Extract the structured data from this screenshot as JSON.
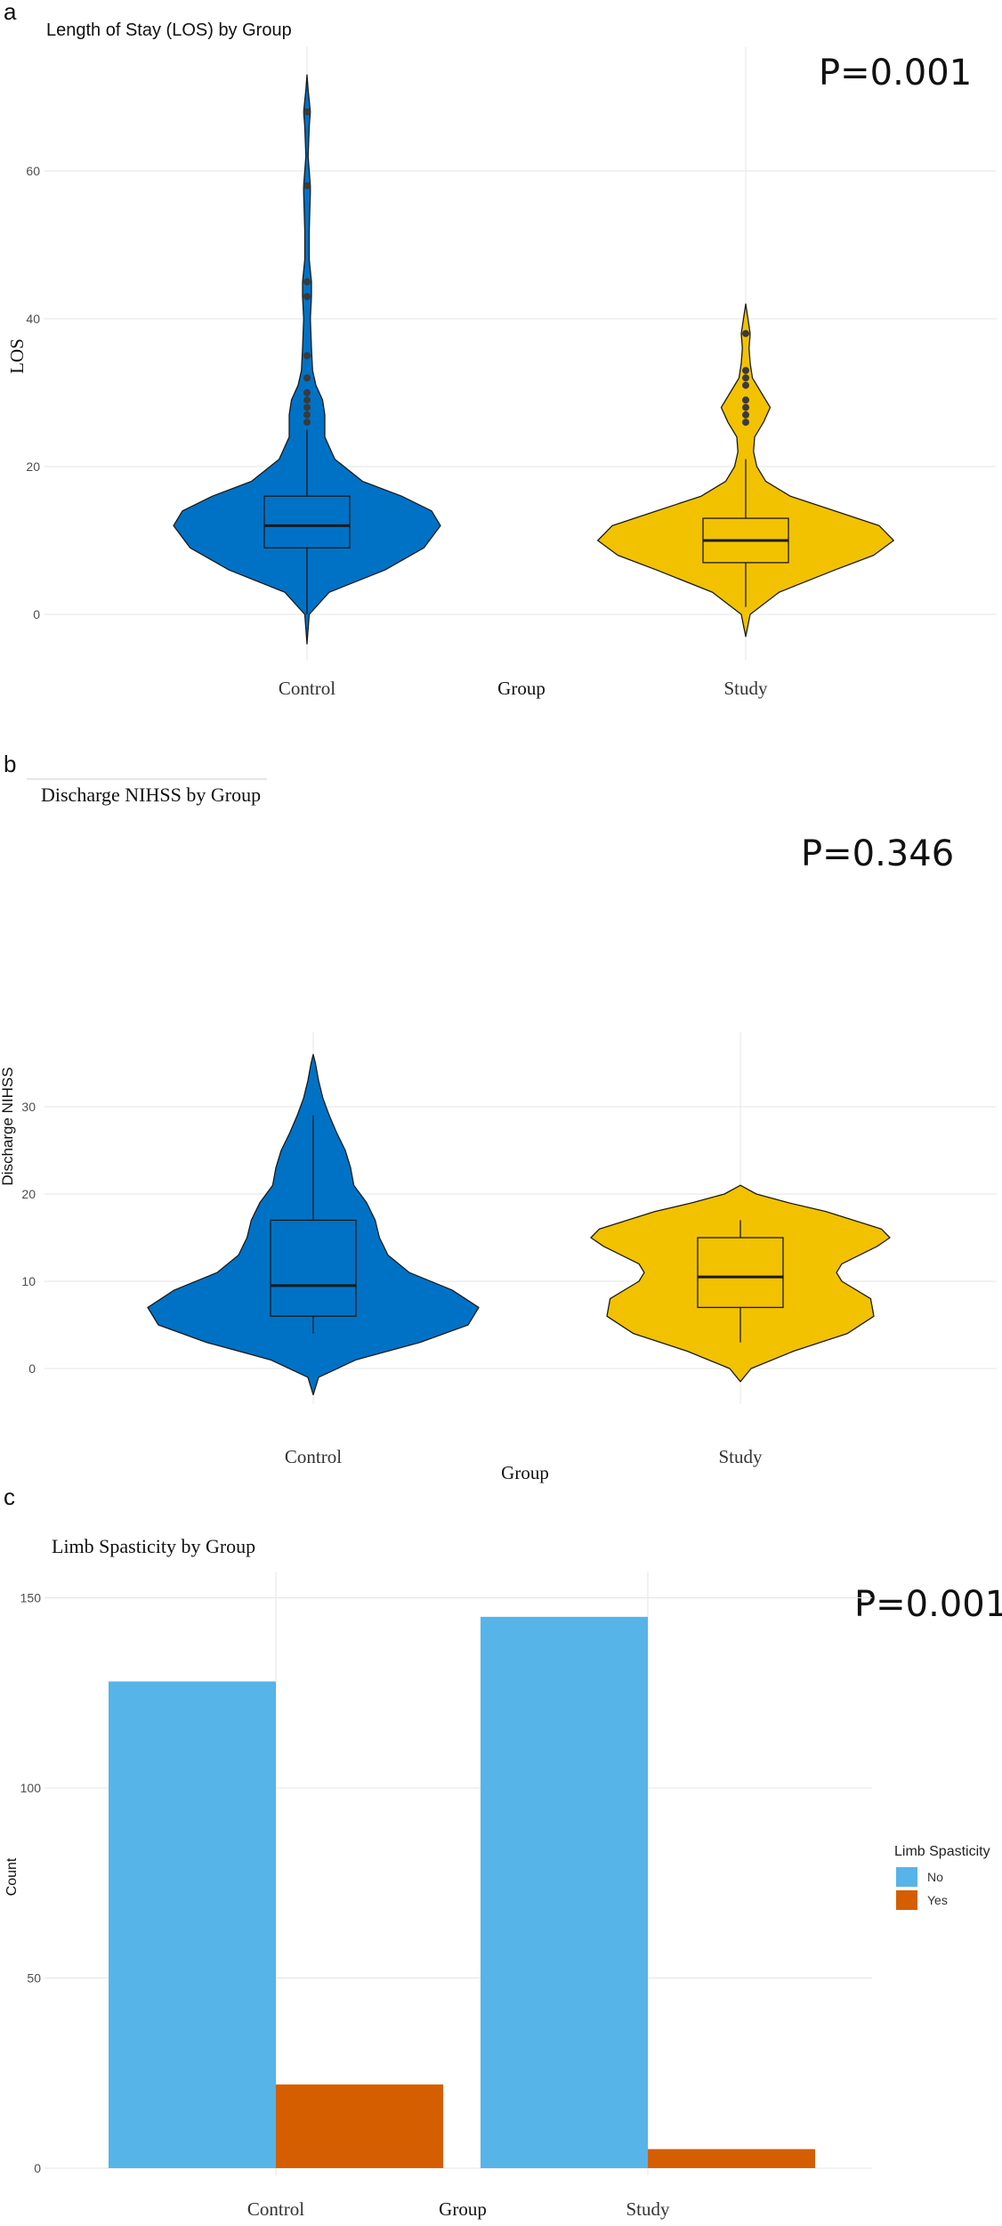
{
  "panels": [
    {
      "letter": "a",
      "p_value": "P=0.001"
    },
    {
      "letter": "b",
      "p_value": "P=0.346"
    },
    {
      "letter": "c",
      "p_value": "P=0.001"
    }
  ],
  "chart_data": [
    {
      "type": "violin",
      "title": "Length of Stay (LOS) by Group",
      "xlabel": "Group",
      "ylabel": "LOS",
      "categories": [
        "Control",
        "Study"
      ],
      "y_ticks": [
        0,
        20,
        40,
        60
      ],
      "ylim": [
        -5,
        75
      ],
      "grid": true,
      "colors": [
        "#0072C6",
        "#F2C200"
      ],
      "box": [
        {
          "group": "Control",
          "whisker_low": 0,
          "q1": 9,
          "median": 12,
          "q3": 16,
          "whisker_high": 25
        },
        {
          "group": "Study",
          "whisker_low": 1,
          "q1": 7,
          "median": 10,
          "q3": 13,
          "whisker_high": 21
        }
      ],
      "outliers": [
        {
          "group": "Control",
          "values": [
            26,
            27,
            28,
            29,
            30,
            32,
            35,
            43,
            45,
            58,
            68
          ]
        },
        {
          "group": "Study",
          "values": [
            26,
            27,
            28,
            29,
            31,
            32,
            33,
            38
          ]
        }
      ],
      "density_profile": [
        {
          "group": "Control",
          "y_range": [
            -4,
            73
          ],
          "y": [
            -4,
            0,
            3,
            6,
            9,
            12,
            14,
            16,
            18,
            21,
            24,
            27,
            29,
            31,
            33,
            36,
            40,
            43,
            45,
            48,
            52,
            57,
            58,
            62,
            66,
            68,
            71,
            73
          ],
          "half_width": [
            0,
            2,
            20,
            70,
            105,
            120,
            112,
            85,
            50,
            25,
            16,
            16,
            14,
            8,
            5,
            4,
            3,
            4,
            4,
            2,
            2,
            3,
            3,
            1,
            2,
            3,
            1,
            0
          ]
        },
        {
          "group": "Study",
          "y_range": [
            -3,
            42
          ],
          "y": [
            -3,
            0,
            3,
            6,
            8,
            10,
            12,
            14,
            16,
            18,
            20,
            22,
            24,
            26,
            28,
            30,
            32,
            34,
            36,
            38,
            40,
            42
          ],
          "half_width": [
            0,
            4,
            30,
            80,
            115,
            133,
            120,
            80,
            40,
            18,
            10,
            7,
            8,
            16,
            22,
            14,
            6,
            4,
            3,
            4,
            2,
            0
          ]
        }
      ]
    },
    {
      "type": "violin",
      "title": "Discharge NIHSS by Group",
      "xlabel": "Group",
      "ylabel": "Discharge NIHSS",
      "categories": [
        "Control",
        "Study"
      ],
      "y_ticks": [
        0,
        10,
        20,
        30
      ],
      "ylim": [
        -3,
        37
      ],
      "grid": true,
      "colors": [
        "#0072C6",
        "#F2C200"
      ],
      "box": [
        {
          "group": "Control",
          "whisker_low": 4,
          "q1": 6,
          "median": 9.5,
          "q3": 17,
          "whisker_high": 29
        },
        {
          "group": "Study",
          "whisker_low": 3,
          "q1": 7,
          "median": 10.5,
          "q3": 15,
          "whisker_high": 17
        }
      ],
      "outliers": [],
      "density_profile": [
        {
          "group": "Control",
          "y_range": [
            -3,
            36
          ],
          "y": [
            -3,
            -1,
            1,
            3,
            5,
            7,
            9,
            11,
            13,
            15,
            17,
            19,
            21,
            23,
            25,
            27,
            29,
            31,
            33,
            35,
            36
          ],
          "half_width": [
            0,
            5,
            40,
            100,
            145,
            155,
            130,
            90,
            70,
            62,
            58,
            50,
            38,
            35,
            30,
            22,
            15,
            9,
            5,
            2,
            0
          ]
        },
        {
          "group": "Study",
          "y_range": [
            -1.5,
            21
          ],
          "y": [
            -1.5,
            0,
            2,
            4,
            6,
            8,
            10,
            11,
            12,
            14,
            15,
            16,
            18,
            19,
            20,
            21
          ],
          "half_width": [
            0,
            10,
            50,
            100,
            125,
            122,
            95,
            90,
            95,
            128,
            140,
            132,
            80,
            45,
            15,
            0
          ]
        }
      ]
    },
    {
      "type": "bar",
      "title": "Limb Spasticity by Group",
      "xlabel": "Group",
      "ylabel": "Count",
      "categories": [
        "Control",
        "Study"
      ],
      "y_ticks": [
        0,
        50,
        100,
        150
      ],
      "ylim": [
        0,
        155
      ],
      "grid": true,
      "legend": {
        "title": "Limb Spasticity",
        "placement": "right"
      },
      "series": [
        {
          "name": "No",
          "color": "#56B4E9",
          "values": [
            128,
            145
          ]
        },
        {
          "name": "Yes",
          "color": "#D55E00",
          "values": [
            22,
            5
          ]
        }
      ]
    }
  ]
}
